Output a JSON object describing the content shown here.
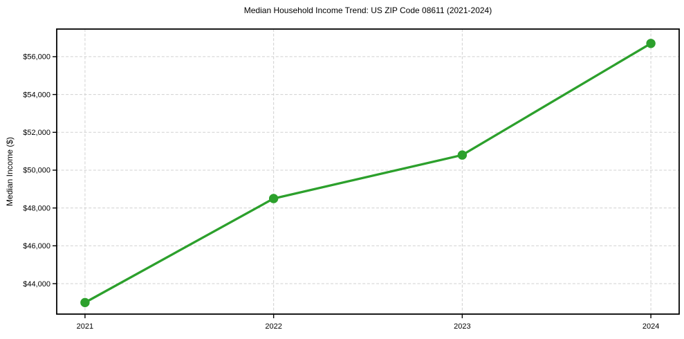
{
  "title": "Median Household Income Trend: US ZIP Code 08611 (2021-2024)",
  "chart_data": {
    "type": "line",
    "title": "Median Household Income Trend: US ZIP Code 08611 (2021-2024)",
    "xlabel": "",
    "ylabel": "Median Income ($)",
    "x": [
      2021,
      2022,
      2023,
      2024
    ],
    "series": [
      {
        "name": "Median Household Income",
        "values": [
          43000,
          48500,
          50800,
          56700
        ]
      }
    ],
    "x_ticks": [
      2021,
      2022,
      2023,
      2024
    ],
    "x_tick_labels": [
      "2021",
      "2022",
      "2023",
      "2024"
    ],
    "y_ticks": [
      44000,
      46000,
      48000,
      50000,
      52000,
      54000,
      56000
    ],
    "y_tick_labels": [
      "$44,000",
      "$46,000",
      "$48,000",
      "$50,000",
      "$52,000",
      "$54,000",
      "$56,000"
    ],
    "xlim": [
      2020.85,
      2024.15
    ],
    "ylim": [
      42390,
      57460
    ],
    "grid": true,
    "legend": false,
    "line_color": "#2ca02c",
    "marker_color": "#2ca02c",
    "grid_color": "#d0d0d0",
    "frame_color": "#000000",
    "background_color": "#ffffff"
  }
}
